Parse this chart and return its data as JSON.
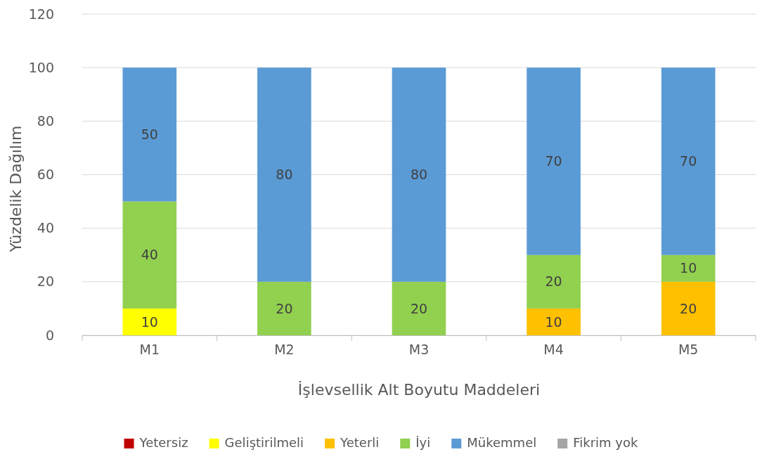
{
  "chart_data": {
    "type": "bar",
    "stacked": true,
    "xlabel": "İşlevsellik Alt Boyutu Maddeleri",
    "ylabel": "Yüzdelik Dağılım",
    "categories": [
      "M1",
      "M2",
      "M3",
      "M4",
      "M5"
    ],
    "ylim": [
      0,
      120
    ],
    "yticks": [
      0,
      20,
      40,
      60,
      80,
      100,
      120
    ],
    "grid": "y",
    "legend": "bottom",
    "series": [
      {
        "name": "Yetersiz",
        "color": "#c00000",
        "values": [
          0,
          0,
          0,
          0,
          0
        ],
        "value_labels": [
          null,
          null,
          null,
          null,
          null
        ]
      },
      {
        "name": "Geliştirilmeli",
        "color": "#ffff00",
        "values": [
          10,
          0,
          0,
          0,
          0
        ],
        "value_labels": [
          "10",
          null,
          null,
          null,
          null
        ]
      },
      {
        "name": "Yeterli",
        "color": "#ffc000",
        "values": [
          0,
          0,
          0,
          10,
          20
        ],
        "value_labels": [
          null,
          null,
          null,
          "10",
          "20"
        ]
      },
      {
        "name": "İyi",
        "color": "#92d050",
        "values": [
          40,
          20,
          20,
          20,
          10
        ],
        "value_labels": [
          "40",
          "20",
          "20",
          "20",
          "10"
        ]
      },
      {
        "name": "Mükemmel",
        "color": "#5b9bd5",
        "values": [
          50,
          80,
          80,
          70,
          70
        ],
        "value_labels": [
          "50",
          "80",
          "80",
          "70",
          "70"
        ]
      },
      {
        "name": "Fikrim yok",
        "color": "#a5a5a5",
        "values": [
          0,
          0,
          0,
          0,
          0
        ],
        "value_labels": [
          null,
          null,
          null,
          null,
          null
        ]
      }
    ]
  }
}
